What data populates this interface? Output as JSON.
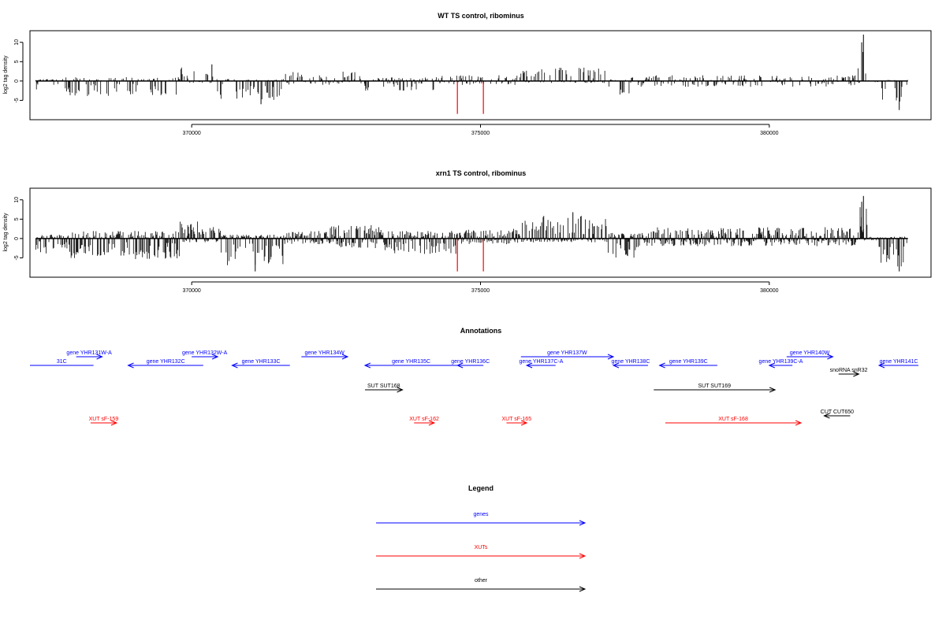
{
  "chart_data": [
    {
      "type": "bar",
      "title": "WT TS control, ribominus",
      "ylabel": "log2 tag density",
      "xlabel": "",
      "xlim": [
        367200,
        382800
      ],
      "ylim": [
        -10,
        13
      ],
      "yticks": [
        -5,
        0,
        5,
        10
      ],
      "xticks": [
        370000,
        375000,
        380000
      ],
      "xtick_labels": [
        "370000",
        "375000",
        "380000"
      ],
      "baseline": [
        367300,
        382400
      ],
      "seed": 11,
      "density": 0.5,
      "segments": [
        {
          "from": 367300,
          "to": 367800,
          "pos": 0.5,
          "neg": -2.5
        },
        {
          "from": 367800,
          "to": 369800,
          "pos": 1.0,
          "neg": -4.0
        },
        {
          "from": 369800,
          "to": 370400,
          "pos": 3.5,
          "neg": -0.5
        },
        {
          "from": 370400,
          "to": 371600,
          "pos": 0.5,
          "neg": -5.0
        },
        {
          "from": 371600,
          "to": 373000,
          "pos": 2.5,
          "neg": -1.0
        },
        {
          "from": 373000,
          "to": 374300,
          "pos": 1.0,
          "neg": -2.5
        },
        {
          "from": 374300,
          "to": 375700,
          "pos": 1.5,
          "neg": -1.0
        },
        {
          "from": 375700,
          "to": 377200,
          "pos": 3.5,
          "neg": -0.5
        },
        {
          "from": 377200,
          "to": 377600,
          "pos": 0.5,
          "neg": -3.5
        },
        {
          "from": 377600,
          "to": 381500,
          "pos": 1.5,
          "neg": -1.5
        },
        {
          "from": 381500,
          "to": 381700,
          "pos": 9.0,
          "neg": -0.5
        },
        {
          "from": 381700,
          "to": 381900,
          "pos": 0.3,
          "neg": -0.3
        },
        {
          "from": 381900,
          "to": 382400,
          "pos": 0.3,
          "neg": -6.0
        }
      ],
      "peaks": [
        {
          "x": 381630,
          "y": 12
        },
        {
          "x": 381600,
          "y": 10
        },
        {
          "x": 382250,
          "y": -7.5
        },
        {
          "x": 370350,
          "y": 4.3
        },
        {
          "x": 371200,
          "y": -6
        }
      ],
      "highlights": [
        {
          "x": 374600,
          "y": -8.5
        },
        {
          "x": 375050,
          "y": -8.5
        }
      ],
      "highlight_color": "#ff0000"
    },
    {
      "type": "bar",
      "title": "xrn1 TS control, ribominus",
      "ylabel": "log2 tag density",
      "xlabel": "",
      "xlim": [
        367200,
        382800
      ],
      "ylim": [
        -10,
        13
      ],
      "yticks": [
        -5,
        0,
        5,
        10
      ],
      "xticks": [
        370000,
        375000,
        380000
      ],
      "xtick_labels": [
        "370000",
        "375000",
        "380000"
      ],
      "baseline": [
        367300,
        382400
      ],
      "seed": 29,
      "density": 0.9,
      "segments": [
        {
          "from": 367300,
          "to": 367900,
          "pos": 1.0,
          "neg": -4.0
        },
        {
          "from": 367900,
          "to": 369800,
          "pos": 2.0,
          "neg": -5.5
        },
        {
          "from": 369800,
          "to": 370500,
          "pos": 4.5,
          "neg": -1.0
        },
        {
          "from": 370500,
          "to": 371600,
          "pos": 1.0,
          "neg": -7.0
        },
        {
          "from": 371600,
          "to": 372400,
          "pos": 2.0,
          "neg": -1.5
        },
        {
          "from": 372400,
          "to": 373300,
          "pos": 3.5,
          "neg": -2.5
        },
        {
          "from": 373300,
          "to": 374600,
          "pos": 2.0,
          "neg": -4.0
        },
        {
          "from": 374600,
          "to": 375700,
          "pos": 2.5,
          "neg": -1.5
        },
        {
          "from": 375700,
          "to": 377200,
          "pos": 6.0,
          "neg": -1.0
        },
        {
          "from": 377200,
          "to": 377800,
          "pos": 1.5,
          "neg": -5.0
        },
        {
          "from": 377800,
          "to": 381500,
          "pos": 3.0,
          "neg": -2.0
        },
        {
          "from": 381500,
          "to": 381700,
          "pos": 9.0,
          "neg": -0.5
        },
        {
          "from": 381700,
          "to": 381900,
          "pos": 0.5,
          "neg": -0.5
        },
        {
          "from": 381900,
          "to": 382400,
          "pos": 0.5,
          "neg": -7.5
        }
      ],
      "peaks": [
        {
          "x": 381630,
          "y": 11
        },
        {
          "x": 381600,
          "y": 9.5
        },
        {
          "x": 382250,
          "y": -8.5
        },
        {
          "x": 371100,
          "y": -8.5
        },
        {
          "x": 376600,
          "y": 6.8
        }
      ],
      "highlights": [
        {
          "x": 374600,
          "y": -8.5
        },
        {
          "x": 375050,
          "y": -8.5
        }
      ],
      "highlight_color": "#ff0000"
    }
  ],
  "annotations": {
    "title": "Annotations",
    "genomic_range": [
      367200,
      382800
    ],
    "colors": {
      "genes": "#0000ff",
      "XUTs": "#ff0000",
      "other": "#000000"
    },
    "features": [
      {
        "label": "31C",
        "kind": "genes",
        "from": 367200,
        "to": 368300,
        "dir": "none",
        "row": 1
      },
      {
        "label": "gene YHR131W-A",
        "kind": "genes",
        "from": 368000,
        "to": 368450,
        "dir": "right",
        "row": 0
      },
      {
        "label": "gene YHR132C",
        "kind": "genes",
        "from": 368900,
        "to": 370200,
        "dir": "left",
        "row": 1
      },
      {
        "label": "gene YHR132W-A",
        "kind": "genes",
        "from": 370000,
        "to": 370450,
        "dir": "right",
        "row": 0
      },
      {
        "label": "gene YHR133C",
        "kind": "genes",
        "from": 370700,
        "to": 371700,
        "dir": "left",
        "row": 1
      },
      {
        "label": "gene YHR134W",
        "kind": "genes",
        "from": 371900,
        "to": 372700,
        "dir": "right",
        "row": 0
      },
      {
        "label": "gene YHR135C",
        "kind": "genes",
        "from": 373000,
        "to": 374600,
        "dir": "left",
        "row": 1
      },
      {
        "label": "gene YHR136C",
        "kind": "genes",
        "from": 374600,
        "to": 375050,
        "dir": "left",
        "row": 1
      },
      {
        "label": "gene YHR137W",
        "kind": "genes",
        "from": 375700,
        "to": 377300,
        "dir": "right",
        "row": 0
      },
      {
        "label": "gene YHR137C-A",
        "kind": "genes",
        "from": 375800,
        "to": 376300,
        "dir": "left",
        "row": 1
      },
      {
        "label": "gene YHR138C",
        "kind": "genes",
        "from": 377300,
        "to": 377900,
        "dir": "left",
        "row": 1
      },
      {
        "label": "gene YHR139C",
        "kind": "genes",
        "from": 378100,
        "to": 379100,
        "dir": "left",
        "row": 1
      },
      {
        "label": "gene YHR139C-A",
        "kind": "genes",
        "from": 380000,
        "to": 380400,
        "dir": "left",
        "row": 1
      },
      {
        "label": "gene YHR140W",
        "kind": "genes",
        "from": 380300,
        "to": 381100,
        "dir": "right",
        "row": 0
      },
      {
        "label": "gene YHR141C",
        "kind": "genes",
        "from": 381900,
        "to": 382600,
        "dir": "left",
        "row": 1
      },
      {
        "label": "snoRNA snR32",
        "kind": "other",
        "from": 381200,
        "to": 381550,
        "dir": "right",
        "row": 2
      },
      {
        "label": "SUT SUT168",
        "kind": "other",
        "from": 373000,
        "to": 373650,
        "dir": "right",
        "row": 3
      },
      {
        "label": "SUT SUT169",
        "kind": "other",
        "from": 378000,
        "to": 380100,
        "dir": "right",
        "row": 3
      },
      {
        "label": "CUT CUT650",
        "kind": "other",
        "from": 380950,
        "to": 381400,
        "dir": "left",
        "row": 4
      },
      {
        "label": "XUT sF-159",
        "kind": "XUTs",
        "from": 368250,
        "to": 368700,
        "dir": "right",
        "row": 5
      },
      {
        "label": "XUT sF-162",
        "kind": "XUTs",
        "from": 373850,
        "to": 374200,
        "dir": "right",
        "row": 5
      },
      {
        "label": "XUT sF-165",
        "kind": "XUTs",
        "from": 375450,
        "to": 375800,
        "dir": "right",
        "row": 5
      },
      {
        "label": "XUT sF-168",
        "kind": "XUTs",
        "from": 378200,
        "to": 380550,
        "dir": "right",
        "row": 5
      }
    ]
  },
  "legend": {
    "title": "Legend",
    "items": [
      {
        "label": "genes",
        "color": "#0000ff"
      },
      {
        "label": "XUTs",
        "color": "#ff0000"
      },
      {
        "label": "other",
        "color": "#000000"
      }
    ]
  }
}
